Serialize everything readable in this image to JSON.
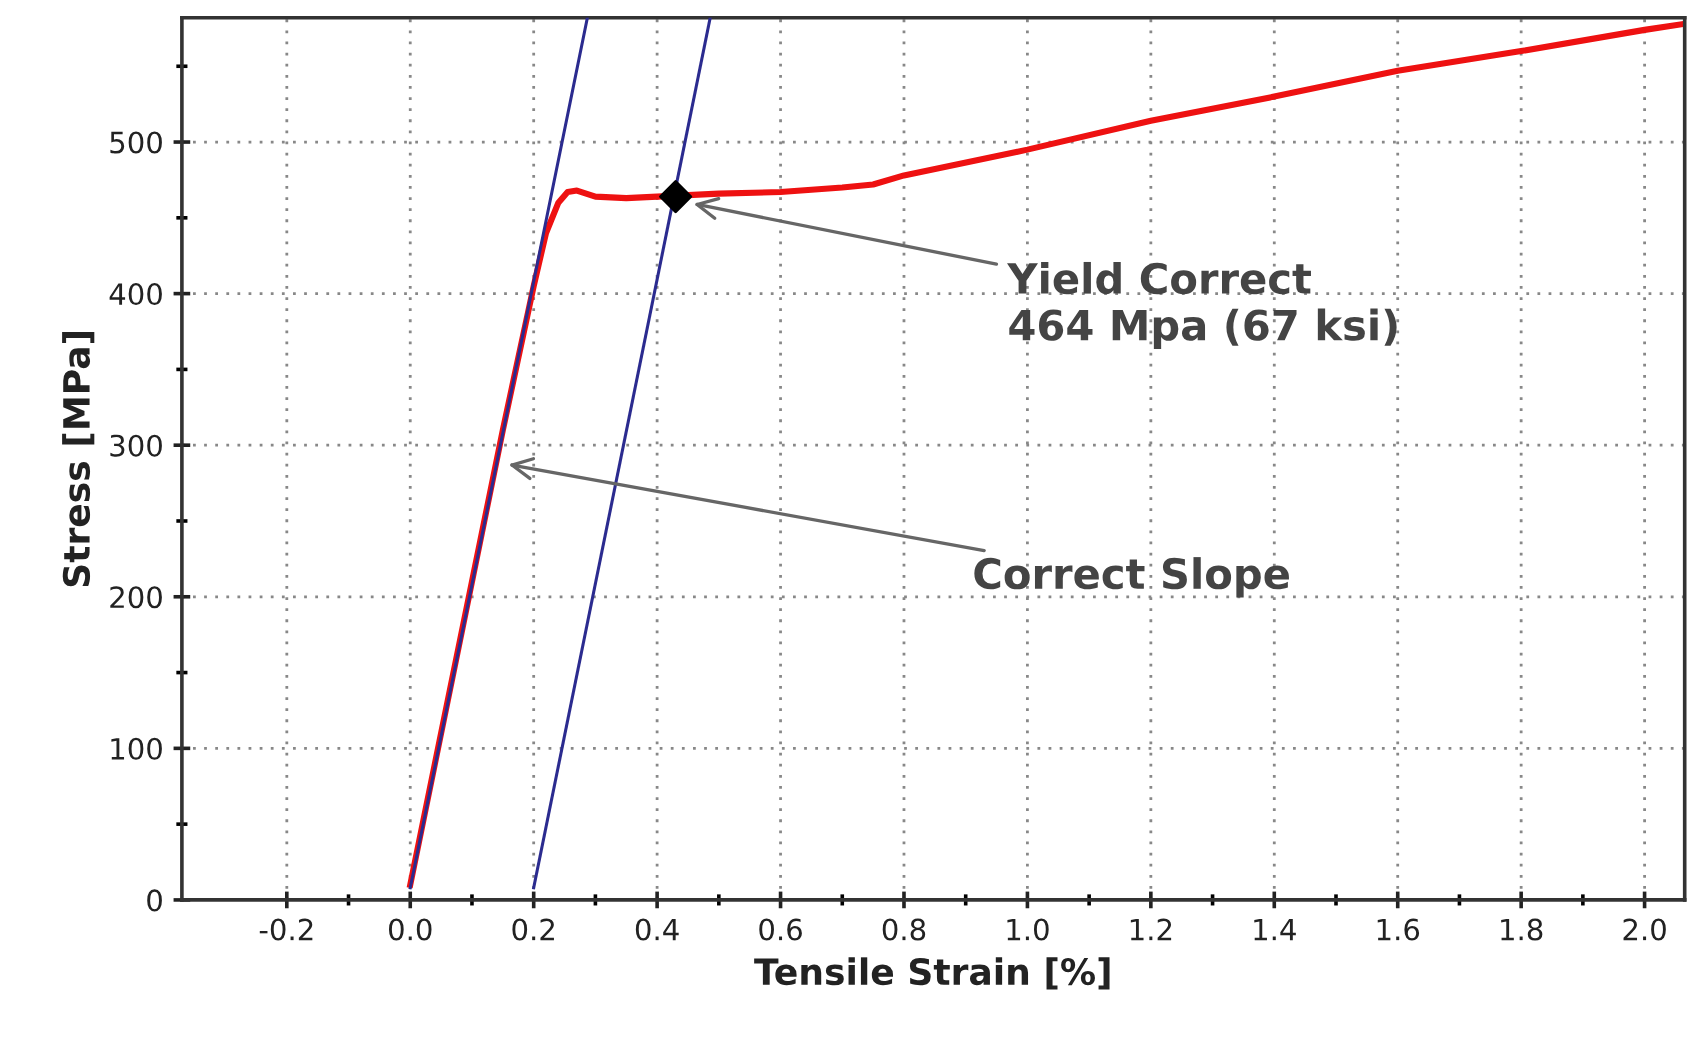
{
  "chart_data": {
    "type": "line",
    "xlabel": "Tensile Strain [%]",
    "ylabel": "Stress [MPa]",
    "xlim": [
      -0.37,
      2.065
    ],
    "ylim": [
      0,
      582
    ],
    "xticks": [
      -0.2,
      {
        "value": -0.1,
        "label": null
      },
      {
        "value": 0.0,
        "label": "0.0"
      },
      {
        "value": 0.1,
        "label": null
      },
      0.2,
      {
        "value": 0.3,
        "label": null
      },
      0.4,
      {
        "value": 0.5,
        "label": null
      },
      0.6,
      {
        "value": 0.7,
        "label": null
      },
      0.8,
      {
        "value": 0.9,
        "label": null
      },
      {
        "value": 1.0,
        "label": "1.0"
      },
      {
        "value": 1.1,
        "label": null
      },
      1.2,
      {
        "value": 1.3,
        "label": null
      },
      1.4,
      {
        "value": 1.5,
        "label": null
      },
      1.6,
      {
        "value": 1.7,
        "label": null
      },
      1.8,
      {
        "value": 1.9,
        "label": null
      },
      {
        "value": 2.0,
        "label": "2.0"
      }
    ],
    "yticks": [
      0,
      {
        "value": 50,
        "label": null
      },
      100,
      {
        "value": 150,
        "label": null
      },
      200,
      {
        "value": 250,
        "label": null
      },
      300,
      {
        "value": 350,
        "label": null
      },
      400,
      {
        "value": 450,
        "label": null
      },
      500,
      {
        "value": 550,
        "label": null
      }
    ],
    "grid": true,
    "line_style": "solid",
    "series": [
      {
        "color": "#2b2b8f",
        "x": [
          0.0,
          0.287
        ],
        "values": [
          8,
          582
        ]
      },
      {
        "color": "#2b2b8f",
        "x": [
          0.2,
          0.486
        ],
        "values": [
          8,
          582
        ]
      },
      {
        "color": "#ee1111",
        "x": [
          0.0,
          0.05,
          0.1,
          0.15,
          0.2,
          0.22,
          0.24,
          0.255,
          0.27,
          0.3,
          0.35,
          0.5,
          0.6,
          0.7,
          0.75,
          0.8,
          1.0,
          1.2,
          1.4,
          1.6,
          1.8,
          2.0,
          2.065
        ],
        "values": [
          10,
          110,
          210,
          310,
          405,
          440,
          460,
          467,
          468,
          464,
          463,
          466,
          467,
          470,
          472,
          478,
          495,
          514,
          530,
          547,
          560,
          574,
          578
        ]
      },
      {
        "type": "scatter",
        "color": "#000000",
        "marker": "diamond",
        "x": [
          0.43
        ],
        "values": [
          464
        ]
      }
    ],
    "annotations": [
      {
        "text": "Yield Correct\n464 Mpa (67 ksi)",
        "x": 0.45,
        "y": 460
      },
      {
        "text": "Correct Slope",
        "x": 0.15,
        "y": 288
      }
    ]
  }
}
